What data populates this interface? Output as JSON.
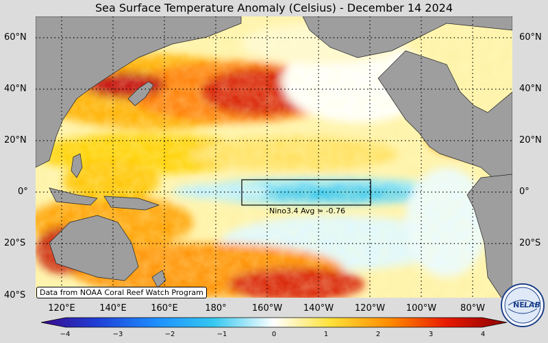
{
  "title": "Sea Surface Temperature Anomaly (Celsius) - December 14 2024",
  "lat_labels": [
    "60°N",
    "40°N",
    "20°N",
    "0°",
    "20°S",
    "40°S"
  ],
  "lon_labels": [
    "120°E",
    "140°E",
    "160°E",
    "180°",
    "160°W",
    "140°W",
    "120°W",
    "100°W",
    "80°W"
  ],
  "credit": "Data from NOAA Coral Reef Watch Program",
  "nino_box_label": "Nino3.4 Avg = -0.76",
  "colorbar": {
    "ticks": [
      "−4",
      "−3",
      "−2",
      "−1",
      "0",
      "1",
      "2",
      "3",
      "4"
    ],
    "range": [
      -4,
      4
    ],
    "colors": [
      "#3a0a8c",
      "#1f3fd6",
      "#1e90ff",
      "#35c8f0",
      "#ffffff",
      "#ffe23a",
      "#ff8a00",
      "#e81a00",
      "#8a0000"
    ]
  },
  "logo": {
    "text_left": "NE",
    "text_right": "LAB"
  },
  "land_color": "#9e9e9e"
}
